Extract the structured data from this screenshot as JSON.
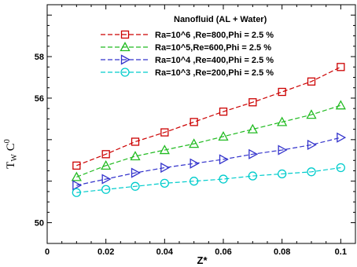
{
  "chart_data": {
    "type": "line",
    "legend_title": "Nanofluid (AL + Water)",
    "xlabel": "Z*",
    "ylabel": {
      "main": "T",
      "sub": "W",
      "unit": "C",
      "unit_sup": "0"
    },
    "xlim": [
      0,
      0.105
    ],
    "ylim": [
      49,
      60.5
    ],
    "x_ticks": [
      0,
      0.02,
      0.04,
      0.06,
      0.08,
      0.1
    ],
    "x_tick_labels": [
      "0",
      "0.02",
      "0.04",
      "0.06",
      "0.08",
      "0.1"
    ],
    "y_ticks": [
      50,
      56,
      58
    ],
    "y_tick_labels": [
      "50",
      "56",
      "58"
    ],
    "grid": false,
    "legend_position": "top-right",
    "x": [
      0.01,
      0.02,
      0.03,
      0.04,
      0.05,
      0.06,
      0.07,
      0.08,
      0.09,
      0.1
    ],
    "series": [
      {
        "name": "Ra=10^6 ,Re=800,Phi = 2.5 %",
        "color": "#cc0000",
        "marker": "square",
        "values": [
          52.75,
          53.3,
          53.9,
          54.35,
          54.85,
          55.35,
          55.8,
          56.3,
          56.8,
          57.5
        ]
      },
      {
        "name": "Ra=10^5,Re=600,Phi = 2.5 %",
        "color": "#22bb22",
        "marker": "triangle-up",
        "values": [
          52.2,
          52.75,
          53.2,
          53.5,
          53.8,
          54.15,
          54.5,
          54.85,
          55.2,
          55.65
        ]
      },
      {
        "name": "Ra=10^4 ,Re=400,Phi = 2.5 %",
        "color": "#3333cc",
        "marker": "triangle-right",
        "values": [
          51.8,
          52.1,
          52.4,
          52.65,
          52.85,
          53.05,
          53.3,
          53.5,
          53.75,
          54.1
        ]
      },
      {
        "name": "Ra=10^3 ,Re=200,Phi = 2.5 %",
        "color": "#00cccc",
        "marker": "circle",
        "values": [
          51.45,
          51.6,
          51.75,
          51.9,
          52.0,
          52.1,
          52.25,
          52.35,
          52.45,
          52.65
        ]
      }
    ]
  }
}
